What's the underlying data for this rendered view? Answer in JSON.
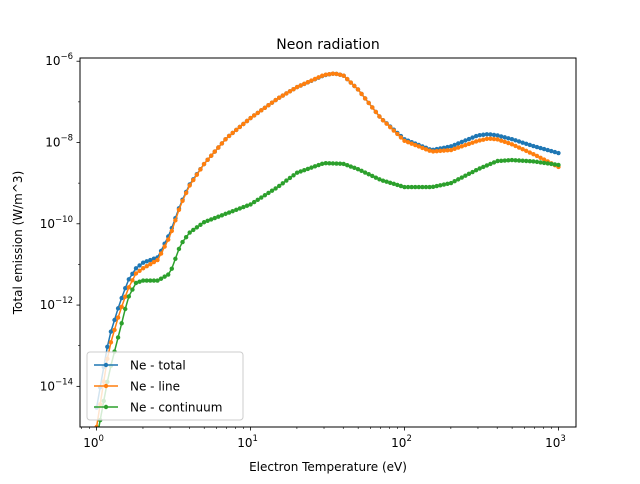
{
  "chart_data": {
    "type": "line",
    "title": "Neon radiation",
    "xlabel": "Electron Temperature (eV)",
    "ylabel": "Total emission (W/m^3)",
    "xscale": "log",
    "yscale": "log",
    "xlim": [
      0.78,
      1300
    ],
    "ylim": [
      1e-15,
      1.2e-06
    ],
    "x_ticks": [
      {
        "value": 1,
        "mantissa": "10",
        "exp": "0"
      },
      {
        "value": 10,
        "mantissa": "10",
        "exp": "1"
      },
      {
        "value": 100,
        "mantissa": "10",
        "exp": "2"
      },
      {
        "value": 1000,
        "mantissa": "10",
        "exp": "3"
      }
    ],
    "y_ticks": [
      {
        "value": 1e-14,
        "mantissa": "10",
        "exp": "−14"
      },
      {
        "value": 1e-12,
        "mantissa": "10",
        "exp": "−12"
      },
      {
        "value": 1e-10,
        "mantissa": "10",
        "exp": "−10"
      },
      {
        "value": 1e-08,
        "mantissa": "10",
        "exp": "−8"
      },
      {
        "value": 1e-06,
        "mantissa": "10",
        "exp": "−6"
      }
    ],
    "grid": false,
    "legend_position": "lower-left",
    "series": [
      {
        "name": "Ne - total",
        "color": "#1f77b4",
        "points": [
          [
            1.0,
            3e-15
          ],
          [
            1.2,
            1.5e-13
          ],
          [
            1.4,
            1e-12
          ],
          [
            1.6,
            4e-12
          ],
          [
            1.8,
            8e-12
          ],
          [
            2.0,
            1.1e-11
          ],
          [
            2.5,
            1.5e-11
          ],
          [
            3.0,
            6e-11
          ],
          [
            3.5,
            3e-10
          ],
          [
            4.0,
            9e-10
          ],
          [
            5.0,
            3e-09
          ],
          [
            7.0,
            1.3e-08
          ],
          [
            10.0,
            4e-08
          ],
          [
            15.0,
            1.2e-07
          ],
          [
            20.0,
            2.3e-07
          ],
          [
            30.0,
            4.5e-07
          ],
          [
            35.0,
            5e-07
          ],
          [
            40.0,
            4.5e-07
          ],
          [
            50.0,
            2e-07
          ],
          [
            70.0,
            4e-08
          ],
          [
            100.0,
            1.2e-08
          ],
          [
            150.0,
            6.5e-09
          ],
          [
            200.0,
            8e-09
          ],
          [
            300.0,
            1.5e-08
          ],
          [
            350.0,
            1.6e-08
          ],
          [
            400.0,
            1.5e-08
          ],
          [
            500.0,
            1.2e-08
          ],
          [
            700.0,
            8e-09
          ],
          [
            1000.0,
            5.5e-09
          ]
        ]
      },
      {
        "name": "Ne - line",
        "color": "#ff7f0e",
        "points": [
          [
            1.0,
            1e-15
          ],
          [
            1.2,
            8e-14
          ],
          [
            1.4,
            6e-13
          ],
          [
            1.6,
            2.5e-12
          ],
          [
            1.8,
            6e-12
          ],
          [
            2.0,
            8e-12
          ],
          [
            2.5,
            1.3e-11
          ],
          [
            3.0,
            5e-11
          ],
          [
            3.5,
            2.8e-10
          ],
          [
            4.0,
            8.5e-10
          ],
          [
            5.0,
            3e-09
          ],
          [
            7.0,
            1.3e-08
          ],
          [
            10.0,
            4e-08
          ],
          [
            15.0,
            1.2e-07
          ],
          [
            20.0,
            2.3e-07
          ],
          [
            30.0,
            4.6e-07
          ],
          [
            35.0,
            5e-07
          ],
          [
            40.0,
            4.5e-07
          ],
          [
            50.0,
            2e-07
          ],
          [
            70.0,
            4e-08
          ],
          [
            100.0,
            1.1e-08
          ],
          [
            150.0,
            6e-09
          ],
          [
            200.0,
            6.5e-09
          ],
          [
            300.0,
            1.1e-08
          ],
          [
            350.0,
            1.25e-08
          ],
          [
            400.0,
            1.2e-08
          ],
          [
            500.0,
            9e-09
          ],
          [
            700.0,
            5e-09
          ],
          [
            1000.0,
            2.5e-09
          ]
        ]
      },
      {
        "name": "Ne - continuum",
        "color": "#2ca02c",
        "points": [
          [
            1.0,
            5e-16
          ],
          [
            1.2,
            2e-14
          ],
          [
            1.4,
            2e-13
          ],
          [
            1.6,
            1.5e-12
          ],
          [
            1.8,
            3.5e-12
          ],
          [
            2.0,
            4e-12
          ],
          [
            2.5,
            4e-12
          ],
          [
            3.0,
            6e-12
          ],
          [
            3.5,
            3e-11
          ],
          [
            4.0,
            6e-11
          ],
          [
            5.0,
            1.1e-10
          ],
          [
            7.0,
            1.8e-10
          ],
          [
            10.0,
            3e-10
          ],
          [
            15.0,
            8e-10
          ],
          [
            20.0,
            1.8e-09
          ],
          [
            30.0,
            3.1e-09
          ],
          [
            40.0,
            3e-09
          ],
          [
            50.0,
            2.2e-09
          ],
          [
            70.0,
            1.2e-09
          ],
          [
            100.0,
            8e-10
          ],
          [
            150.0,
            8e-10
          ],
          [
            200.0,
            1e-09
          ],
          [
            300.0,
            2.2e-09
          ],
          [
            400.0,
            3.5e-09
          ],
          [
            500.0,
            3.7e-09
          ],
          [
            700.0,
            3.4e-09
          ],
          [
            1000.0,
            2.8e-09
          ]
        ]
      }
    ]
  }
}
